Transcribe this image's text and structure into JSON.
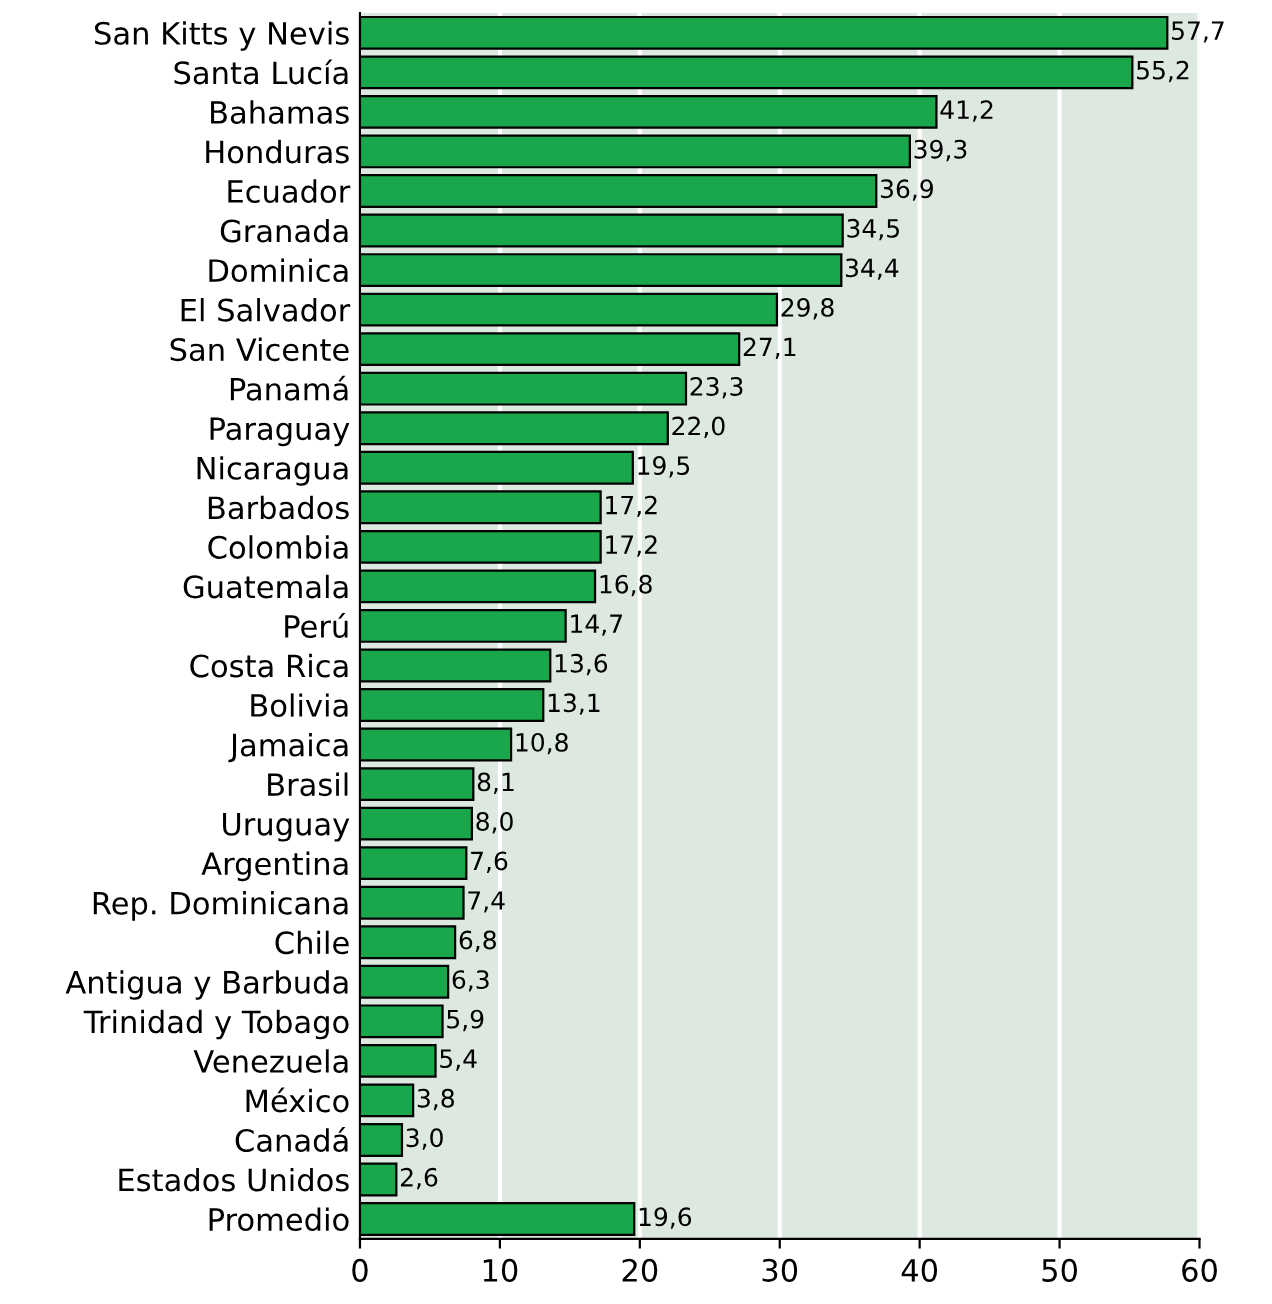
{
  "chart_data": {
    "type": "bar",
    "orientation": "horizontal",
    "categories": [
      "San Kitts y Nevis",
      "Santa Lucía",
      "Bahamas",
      "Honduras",
      "Ecuador",
      "Granada",
      "Dominica",
      "El Salvador",
      "San Vicente",
      "Panamá",
      "Paraguay",
      "Nicaragua",
      "Barbados",
      "Colombia",
      "Guatemala",
      "Perú",
      "Costa Rica",
      "Bolivia",
      "Jamaica",
      "Brasil",
      "Uruguay",
      "Argentina",
      "Rep. Dominicana",
      "Chile",
      "Antigua y Barbuda",
      "Trinidad y Tobago",
      "Venezuela",
      "México",
      "Canadá",
      "Estados Unidos",
      "Promedio"
    ],
    "values": [
      57.7,
      55.2,
      41.2,
      39.3,
      36.9,
      34.5,
      34.4,
      29.8,
      27.1,
      23.3,
      22.0,
      19.5,
      17.2,
      17.2,
      16.8,
      14.7,
      13.6,
      13.1,
      10.8,
      8.1,
      8.0,
      7.6,
      7.4,
      6.8,
      6.3,
      5.9,
      5.4,
      3.8,
      3.0,
      2.6,
      19.6
    ],
    "value_labels": [
      "57,7",
      "55,2",
      "41,2",
      "39,3",
      "36,9",
      "34,5",
      "34,4",
      "29,8",
      "27,1",
      "23,3",
      "22,0",
      "19,5",
      "17,2",
      "17,2",
      "16,8",
      "14,7",
      "13,6",
      "13,1",
      "10,8",
      "8,1",
      "8,0",
      "7,6",
      "7,4",
      "6,8",
      "6,3",
      "5,9",
      "5,4",
      "3,8",
      "3,0",
      "2,6",
      "19,6"
    ],
    "color": "#1aa64a",
    "xlim": [
      0,
      60
    ],
    "xticks": [
      0,
      10,
      20,
      30,
      40,
      50,
      60
    ],
    "grid": "x"
  }
}
